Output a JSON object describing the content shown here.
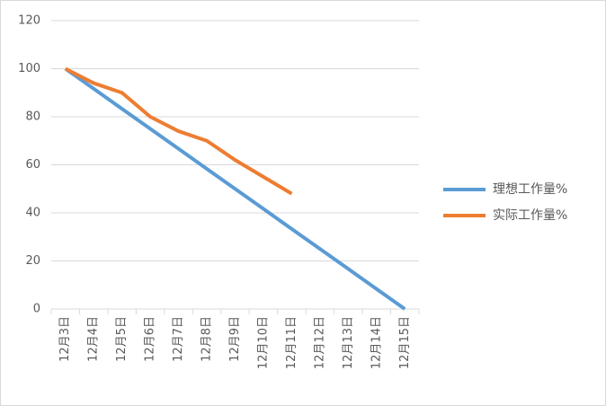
{
  "chart_data": {
    "type": "line",
    "categories": [
      "12月3日",
      "12月4日",
      "12月5日",
      "12月6日",
      "12月7日",
      "12月8日",
      "12月9日",
      "12月10日",
      "12月11日",
      "12月12日",
      "12月13日",
      "12月14日",
      "12月15日"
    ],
    "series": [
      {
        "name": "理想工作量%",
        "color": "#5b9bd5",
        "values": [
          100,
          91.7,
          83.3,
          75,
          66.7,
          58.3,
          50,
          41.7,
          33.3,
          25,
          16.7,
          8.3,
          0
        ]
      },
      {
        "name": "实际工作量%",
        "color": "#ed7d31",
        "values": [
          100,
          94,
          90,
          80,
          74,
          70,
          62,
          55,
          48,
          null,
          null,
          null,
          null
        ]
      }
    ],
    "ylim": [
      0,
      120
    ],
    "yticks": [
      0,
      20,
      40,
      60,
      80,
      100,
      120
    ],
    "grid": true,
    "legend": "right"
  }
}
